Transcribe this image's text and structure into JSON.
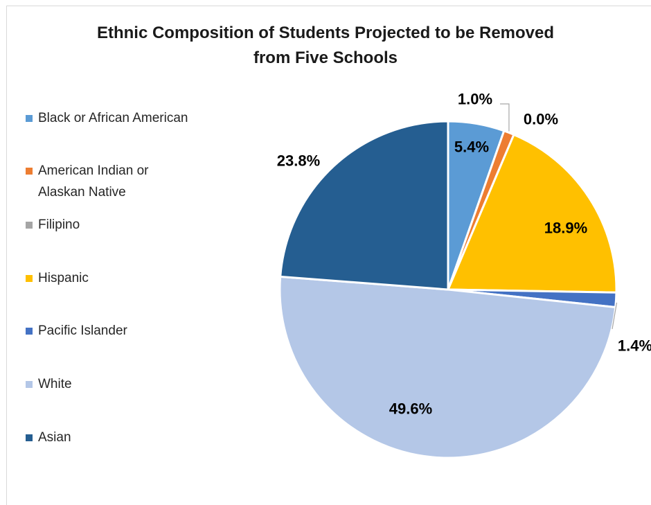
{
  "chart_data": {
    "type": "pie",
    "title": "Ethnic Composition of Students Projected to be Removed from Five Schools",
    "title_lines": [
      "Ethnic Composition of Students Projected to be Removed",
      "from Five Schools"
    ],
    "legend_position": "left",
    "slices": [
      {
        "label": "Black or African American",
        "label_lines": [
          "Black or African American"
        ],
        "value": 5.4,
        "display": "5.4%",
        "color": "#5b9bd5"
      },
      {
        "label": "American Indian or Alaskan Native",
        "label_lines": [
          "American Indian or",
          "Alaskan Native"
        ],
        "value": 1.0,
        "display": "1.0%",
        "color": "#ed7d31"
      },
      {
        "label": "Filipino",
        "label_lines": [
          "Filipino"
        ],
        "value": 0.0,
        "display": "0.0%",
        "color": "#a5a5a5"
      },
      {
        "label": "Hispanic",
        "label_lines": [
          "Hispanic"
        ],
        "value": 18.9,
        "display": "18.9%",
        "color": "#ffc000"
      },
      {
        "label": "Pacific Islander",
        "label_lines": [
          "Pacific Islander"
        ],
        "value": 1.4,
        "display": "1.4%",
        "color": "#4472c4"
      },
      {
        "label": "White",
        "label_lines": [
          "White"
        ],
        "value": 49.6,
        "display": "49.6%",
        "color": "#b4c7e7"
      },
      {
        "label": "Asian",
        "label_lines": [
          "Asian"
        ],
        "value": 23.8,
        "display": "23.8%",
        "color": "#255e91"
      }
    ]
  }
}
